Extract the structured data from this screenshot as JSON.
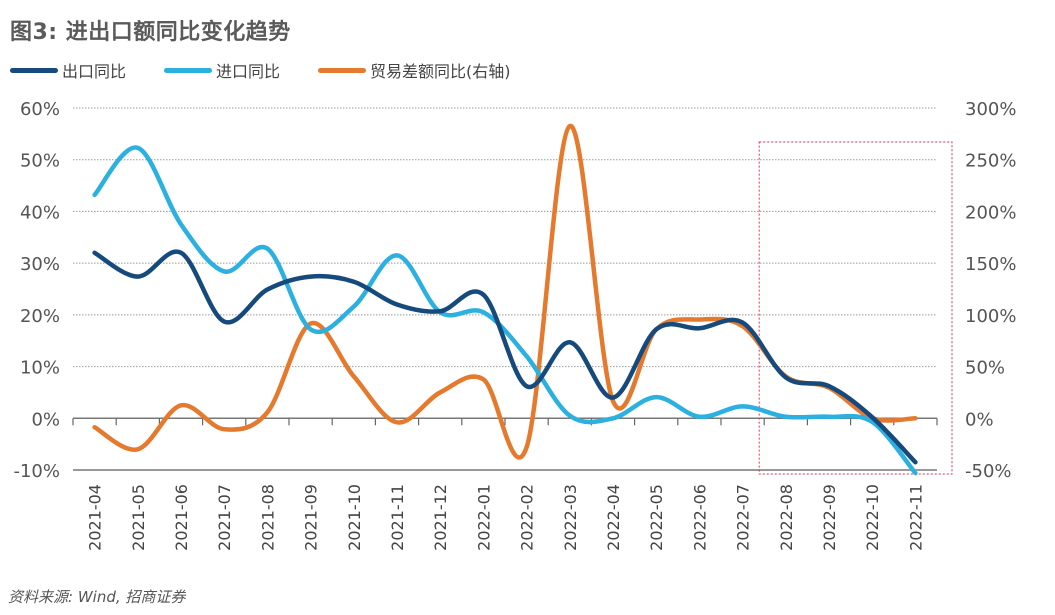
{
  "title": "图3: 进出口额同比变化趋势",
  "source": "资料来源: Wind, 招商证券",
  "chart_data": {
    "type": "line",
    "title": "图3: 进出口额同比变化趋势",
    "categories": [
      "2021-04",
      "2021-05",
      "2021-06",
      "2021-07",
      "2021-08",
      "2021-09",
      "2021-10",
      "2021-11",
      "2021-12",
      "2022-01",
      "2022-02",
      "2022-03",
      "2022-04",
      "2022-05",
      "2022-06",
      "2022-07",
      "2022-08",
      "2022-09",
      "2022-10",
      "2022-11"
    ],
    "left_axis": {
      "ylim": [
        -10,
        60
      ],
      "ticks": [
        "60%",
        "50%",
        "40%",
        "30%",
        "20%",
        "10%",
        "0%",
        "-10%"
      ],
      "negative_tick_color": "#d9304f"
    },
    "right_axis": {
      "ylim": [
        -50,
        300
      ],
      "ticks": [
        "300%",
        "250%",
        "200%",
        "150%",
        "100%",
        "50%",
        "0%",
        "-50%"
      ]
    },
    "grid": true,
    "legend_position": "top-left",
    "series": [
      {
        "name": "出口同比",
        "axis": "left",
        "color": "#174a7c",
        "values": [
          32.0,
          27.4,
          32.0,
          18.7,
          24.9,
          27.4,
          26.4,
          22.0,
          20.7,
          23.9,
          6.2,
          14.7,
          4.0,
          17.2,
          17.4,
          18.5,
          7.9,
          6.2,
          0.2,
          -8.5
        ]
      },
      {
        "name": "进口同比",
        "axis": "left",
        "color": "#2bb0e0",
        "values": [
          43.2,
          52.3,
          37.5,
          28.4,
          32.8,
          17.2,
          21.6,
          31.5,
          20.5,
          20.5,
          12.0,
          0.5,
          0.0,
          4.1,
          0.3,
          2.3,
          0.3,
          0.3,
          -0.7,
          -10.6
        ]
      },
      {
        "name": "贸易差额同比(右轴)",
        "axis": "right",
        "color": "#e57a2e",
        "values": [
          -8.7,
          -30,
          12.5,
          -10.6,
          5.8,
          91.6,
          40.5,
          -3.9,
          25,
          37.6,
          -28,
          282.5,
          16.7,
          86,
          95.5,
          89,
          40.5,
          29.6,
          0,
          0
        ]
      }
    ],
    "highlight_box": {
      "from": "2022-08",
      "to": "2022-11",
      "color": "#e0304f",
      "style": "dotted"
    }
  }
}
